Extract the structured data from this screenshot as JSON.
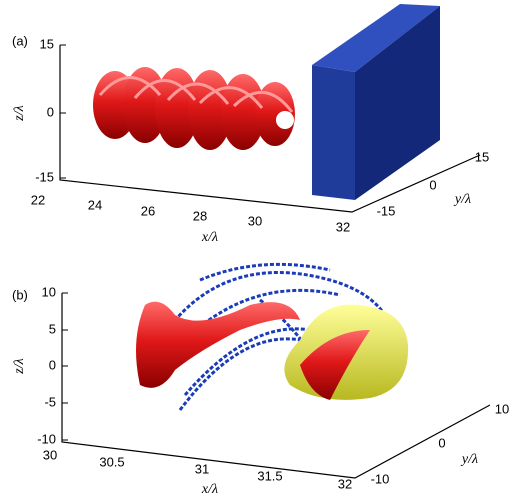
{
  "panels": [
    {
      "label": "(a)",
      "z_axis": {
        "label": "z/λ",
        "ticks": [
          15,
          0,
          -15
        ]
      },
      "x_axis": {
        "label": "x/λ",
        "ticks": [
          22,
          24,
          26,
          28,
          30,
          32
        ]
      },
      "y_axis": {
        "label": "y/λ",
        "ticks": [
          -15,
          0,
          15
        ]
      }
    },
    {
      "label": "(b)",
      "z_axis": {
        "label": "z/λ",
        "ticks": [
          10,
          5,
          0,
          -5,
          -10
        ]
      },
      "x_axis": {
        "label": "x/λ",
        "ticks": [
          30,
          30.5,
          31,
          31.5,
          32
        ]
      },
      "y_axis": {
        "label": "y/λ",
        "ticks": [
          -10,
          0,
          10
        ]
      }
    }
  ]
}
